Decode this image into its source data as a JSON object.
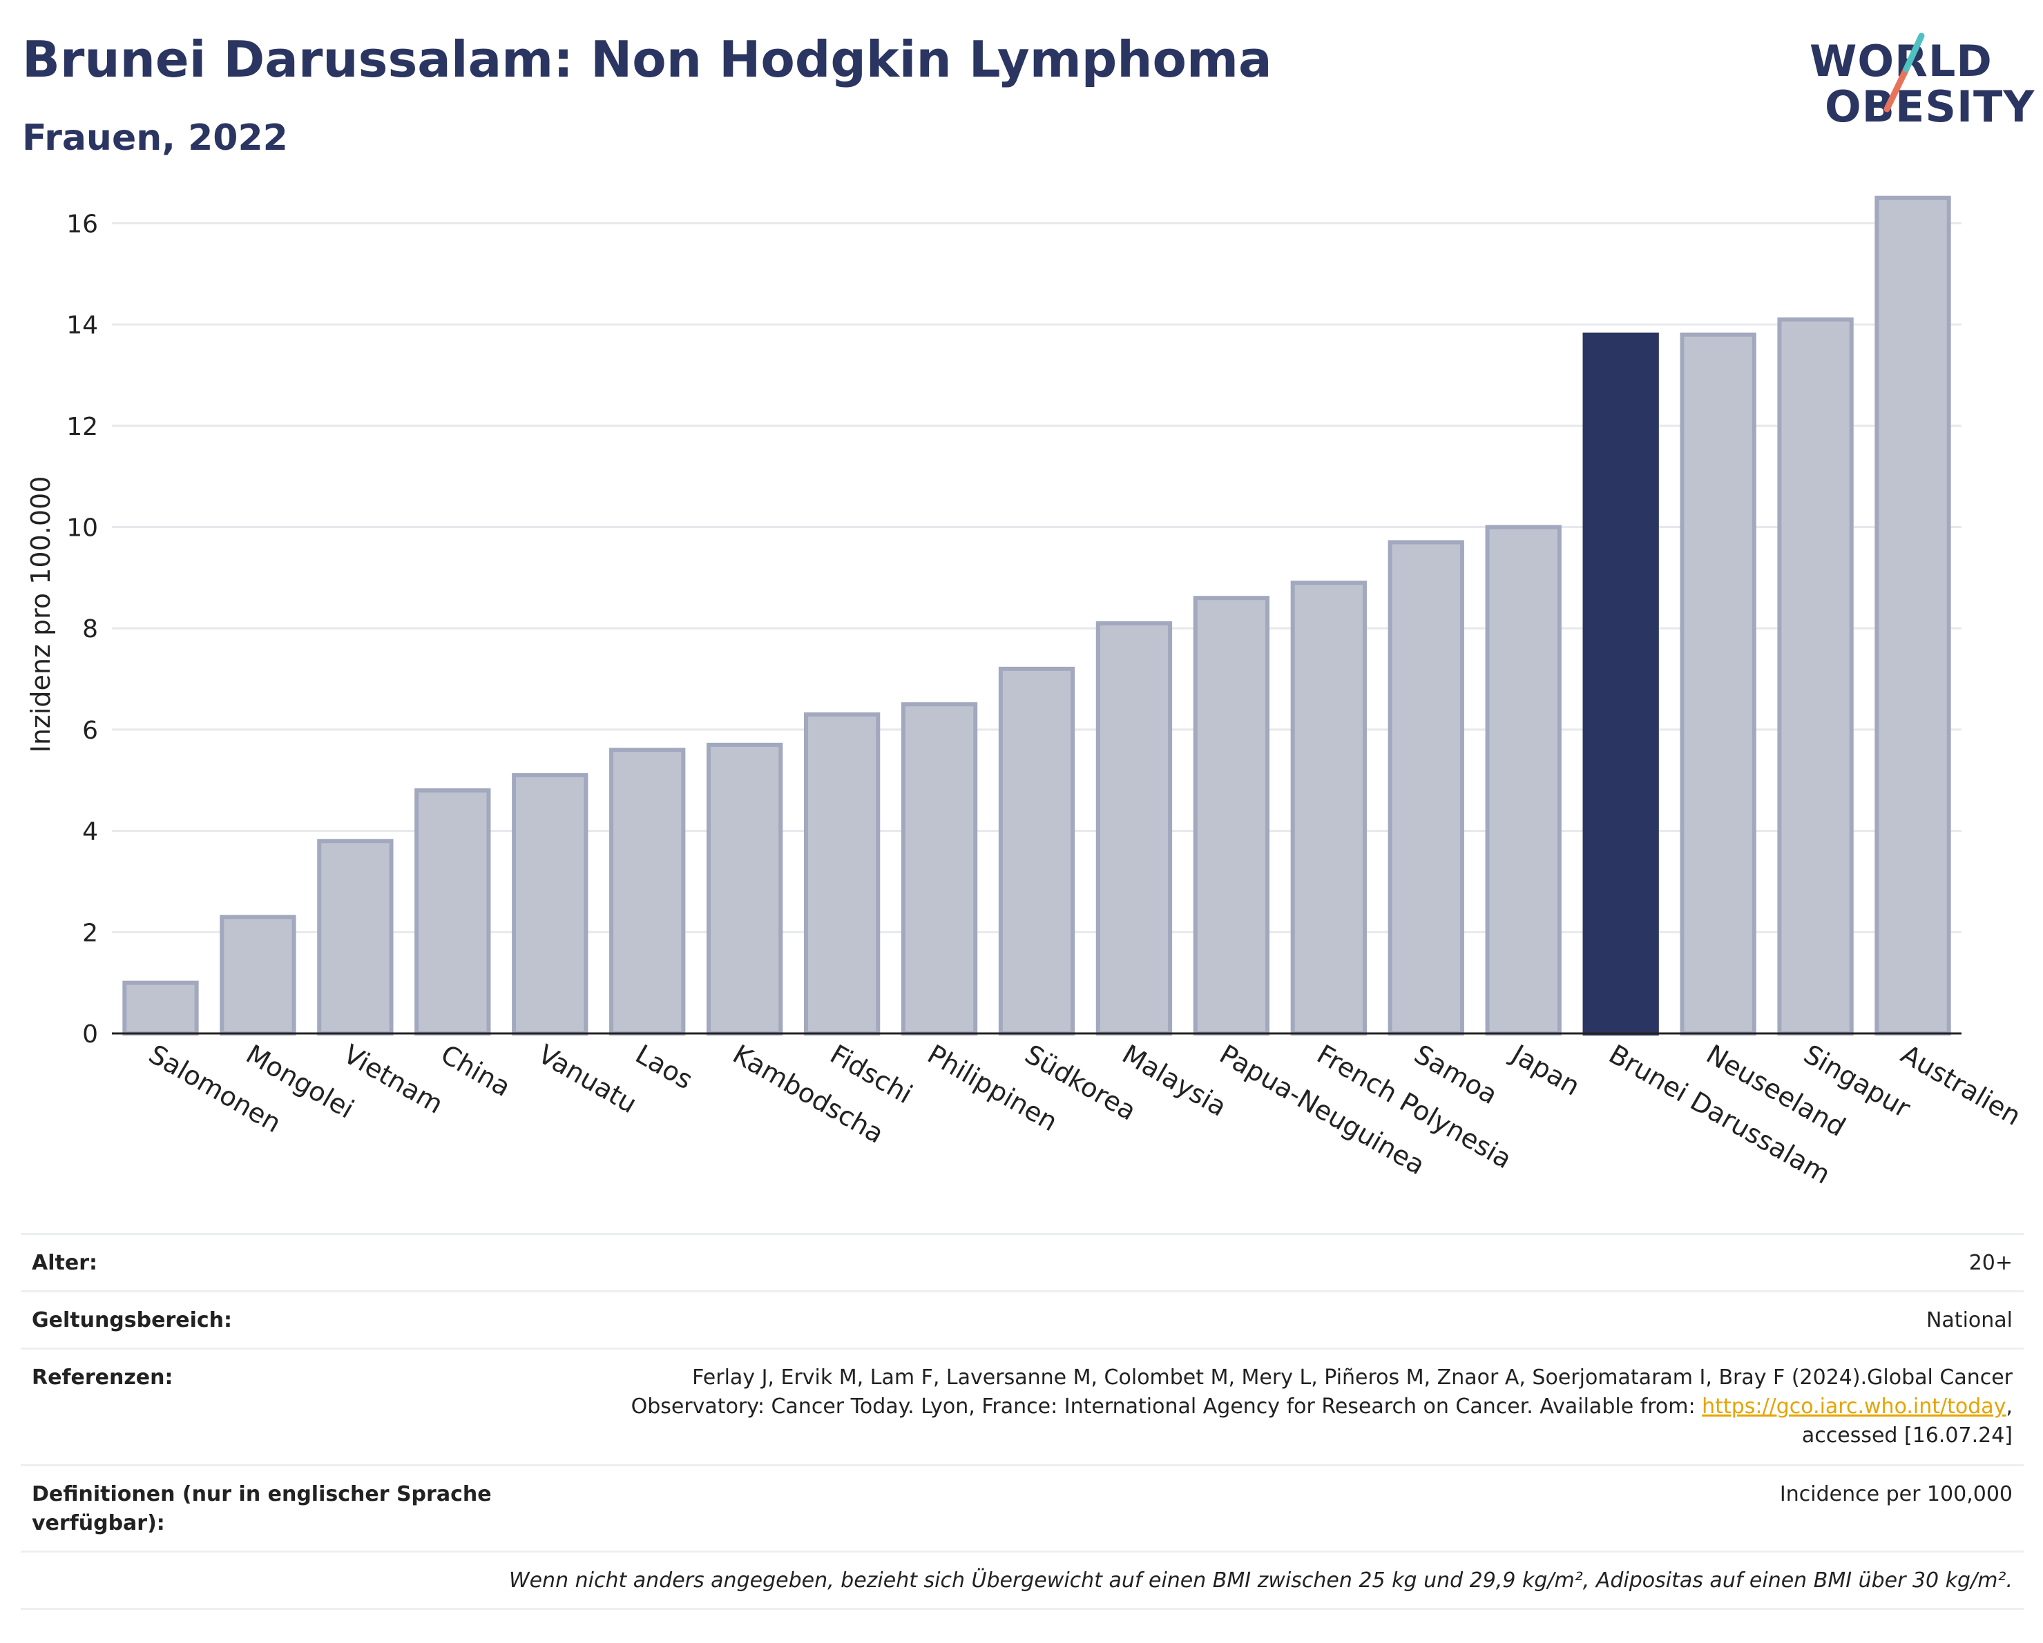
{
  "header": {
    "title": "Brunei Darussalam: Non Hodgkin Lymphoma",
    "subtitle": "Frauen, 2022",
    "logo_line1": "WORLD",
    "logo_line2": "OBESITY"
  },
  "colors": {
    "highlight": "#2b3561",
    "bar_fill": "#bfc3d0",
    "bar_stroke": "#a2a8bd",
    "logo_teal": "#4fc1c0",
    "logo_coral": "#e8735c"
  },
  "chart_data": {
    "type": "bar",
    "title": "Brunei Darussalam: Non Hodgkin Lymphoma",
    "subtitle": "Frauen, 2022",
    "xlabel": "",
    "ylabel": "Inzidenz pro 100.000",
    "ylim": [
      0,
      17
    ],
    "yticks": [
      0,
      2,
      4,
      6,
      8,
      10,
      12,
      14,
      16
    ],
    "grid": true,
    "highlight_category": "Brunei Darussalam",
    "categories": [
      "Salomonen",
      "Mongolei",
      "Vietnam",
      "China",
      "Vanuatu",
      "Laos",
      "Kambodscha",
      "Fidschi",
      "Philippinen",
      "Südkorea",
      "Malaysia",
      "Papua-Neuguinea",
      "French Polynesia",
      "Samoa",
      "Japan",
      "Brunei Darussalam",
      "Neuseeland",
      "Singapur",
      "Australien"
    ],
    "values": [
      1.0,
      2.3,
      3.8,
      4.8,
      5.1,
      5.6,
      5.7,
      6.3,
      6.5,
      7.2,
      8.1,
      8.6,
      8.9,
      9.7,
      10.0,
      13.8,
      13.8,
      14.1,
      16.5
    ]
  },
  "meta": {
    "age_label": "Alter:",
    "age_value": "20+",
    "scope_label": "Geltungsbereich:",
    "scope_value": "National",
    "ref_label": "Referenzen:",
    "ref_line1": "Ferlay J, Ervik M, Lam F, Laversanne M, Colombet M, Mery L, Piñeros M, Znaor A, Soerjomataram I, Bray F (2024).Global Cancer",
    "ref_line2_pre": "Observatory: Cancer Today. Lyon, France: International Agency for Research on Cancer. Available from: ",
    "ref_link": "https://gco.iarc.who.int/today",
    "ref_line2_post": ",",
    "ref_line3": "accessed [16.07.24]",
    "def_label": "Definitionen (nur in englischer Sprache verfügbar):",
    "def_value": "Incidence per 100,000",
    "note": "Wenn nicht anders angegeben, bezieht sich Übergewicht auf einen BMI zwischen 25 kg und 29,9 kg/m², Adipositas auf einen BMI über 30 kg/m²."
  }
}
